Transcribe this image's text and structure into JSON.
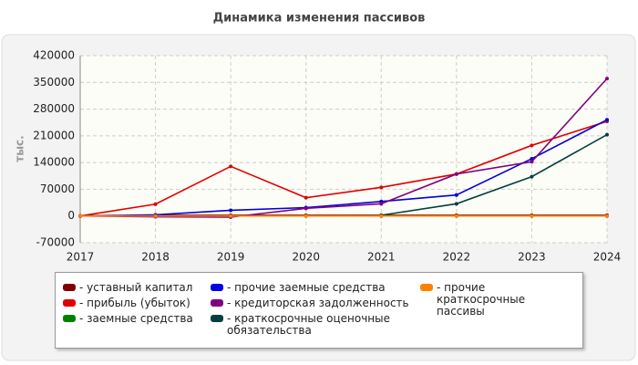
{
  "chart_data": {
    "type": "line",
    "title": "Динамика изменения пассивов",
    "y_label": "тыс.",
    "categories": [
      "2017",
      "2018",
      "2019",
      "2020",
      "2021",
      "2022",
      "2023",
      "2024"
    ],
    "series": [
      {
        "name": "- уставный капитал",
        "color": "#800000",
        "values": [
          0,
          2000,
          2000,
          2000,
          2000,
          2000,
          2000,
          2000
        ]
      },
      {
        "name": "- прибыль (убыток)",
        "color": "#e00000",
        "values": [
          0,
          31000,
          130000,
          48000,
          75000,
          110000,
          185000,
          248000
        ]
      },
      {
        "name": "- заемные средства",
        "color": "#008000",
        "values": [
          0,
          0,
          0,
          0,
          0,
          0,
          0,
          0
        ]
      },
      {
        "name": "- прочие заемные средства",
        "color": "#0000e0",
        "values": [
          0,
          3000,
          15000,
          22000,
          38000,
          55000,
          150000,
          252000
        ]
      },
      {
        "name": "- кредиторская задолженность",
        "color": "#800080",
        "values": [
          0,
          -2000,
          -3000,
          20000,
          32000,
          110000,
          142000,
          360000
        ]
      },
      {
        "name": "- краткосрочные оценочные обязательства",
        "color": "#004040",
        "values": [
          null,
          null,
          null,
          null,
          2000,
          32000,
          103000,
          213000
        ]
      },
      {
        "name": "- прочие краткосрочные пассивы",
        "color": "#ff8000",
        "values": [
          0,
          0,
          0,
          0,
          0,
          0,
          0,
          0
        ]
      }
    ],
    "ylim": [
      -70000,
      420000
    ],
    "yticks": [
      -70000,
      0,
      70000,
      140000,
      210000,
      280000,
      350000,
      420000
    ],
    "grid": true
  }
}
